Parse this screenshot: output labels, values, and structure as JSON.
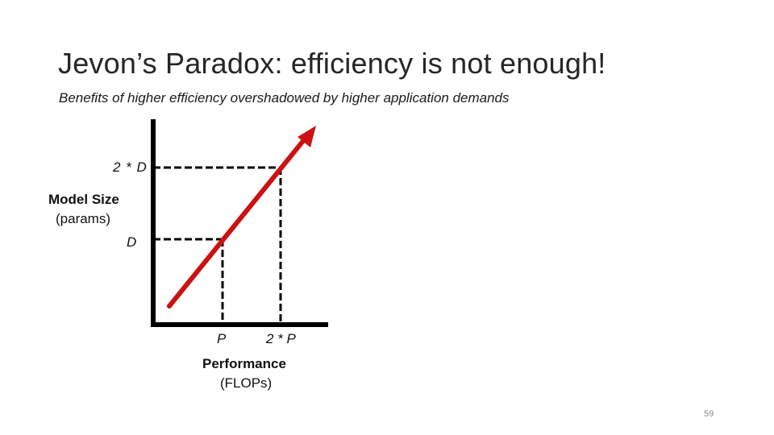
{
  "slide": {
    "title": "Jevon’s Paradox: efficiency is not enough!",
    "subtitle": "Benefits of higher efficiency overshadowed by higher application demands",
    "page_number": "59"
  },
  "diagram": {
    "y_axis": {
      "label": "Model Size",
      "unit": "(params)",
      "tick_low": "D",
      "tick_high": "2 * D"
    },
    "x_axis": {
      "label": "Performance",
      "unit": "(FLOPs)",
      "tick_low": "P",
      "tick_high": "2 * P"
    },
    "arrow_color": "#cc1111",
    "axis_color": "#000000"
  }
}
